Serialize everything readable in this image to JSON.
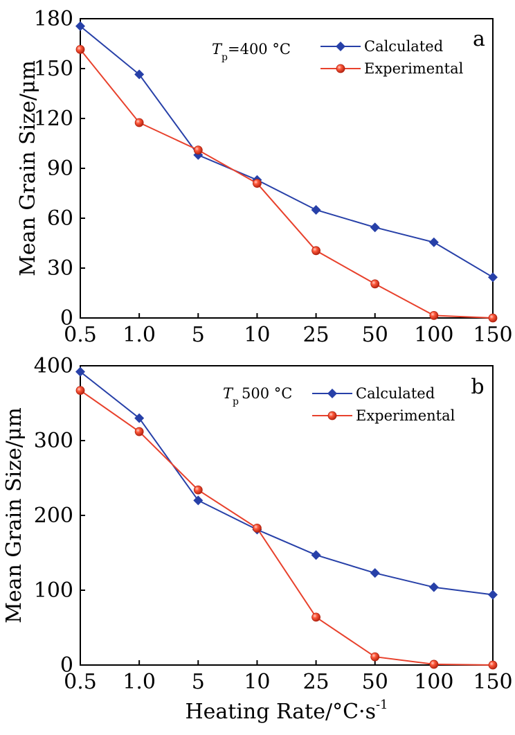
{
  "chart_data": [
    {
      "type": "line",
      "panel_label": "a",
      "annotation": {
        "symbol": "T",
        "subscript": "p",
        "value": "=400 °C"
      },
      "ylabel": "Mean Grain Size/μm",
      "xlabel": "",
      "categories": [
        "0.5",
        "1.0",
        "5",
        "10",
        "25",
        "50",
        "100",
        "150"
      ],
      "yticks": [
        "0",
        "30",
        "60",
        "90",
        "120",
        "150",
        "180"
      ],
      "ylim": [
        0,
        180
      ],
      "legend_position": "top-right",
      "series": [
        {
          "name": "Calculated",
          "color": "#2740a8",
          "marker": "diamond",
          "values": [
            175.5,
            146.5,
            98,
            83,
            65,
            54.5,
            45.5,
            24.5
          ]
        },
        {
          "name": "Experimental",
          "color": "#e8412c",
          "marker": "circle",
          "values": [
            161.5,
            117.5,
            101,
            81,
            40.5,
            20.5,
            1.5,
            0
          ]
        }
      ]
    },
    {
      "type": "line",
      "panel_label": "b",
      "annotation": {
        "symbol": "T",
        "subscript": "p",
        "value": "500 °C"
      },
      "ylabel": "Mean Grain Size/μm",
      "xlabel": "Heating Rate/°C·s",
      "xlabel_superscript": "-1",
      "categories": [
        "0.5",
        "1.0",
        "5",
        "10",
        "25",
        "50",
        "100",
        "150"
      ],
      "yticks": [
        "0",
        "100",
        "200",
        "300",
        "400"
      ],
      "ylim": [
        0,
        400
      ],
      "legend_position": "top-right",
      "series": [
        {
          "name": "Calculated",
          "color": "#2740a8",
          "marker": "diamond",
          "values": [
            392,
            330,
            220,
            181,
            147,
            123,
            104,
            94
          ]
        },
        {
          "name": "Experimental",
          "color": "#e8412c",
          "marker": "circle",
          "values": [
            367,
            312,
            234,
            183,
            64,
            11,
            1,
            0
          ]
        }
      ]
    }
  ]
}
